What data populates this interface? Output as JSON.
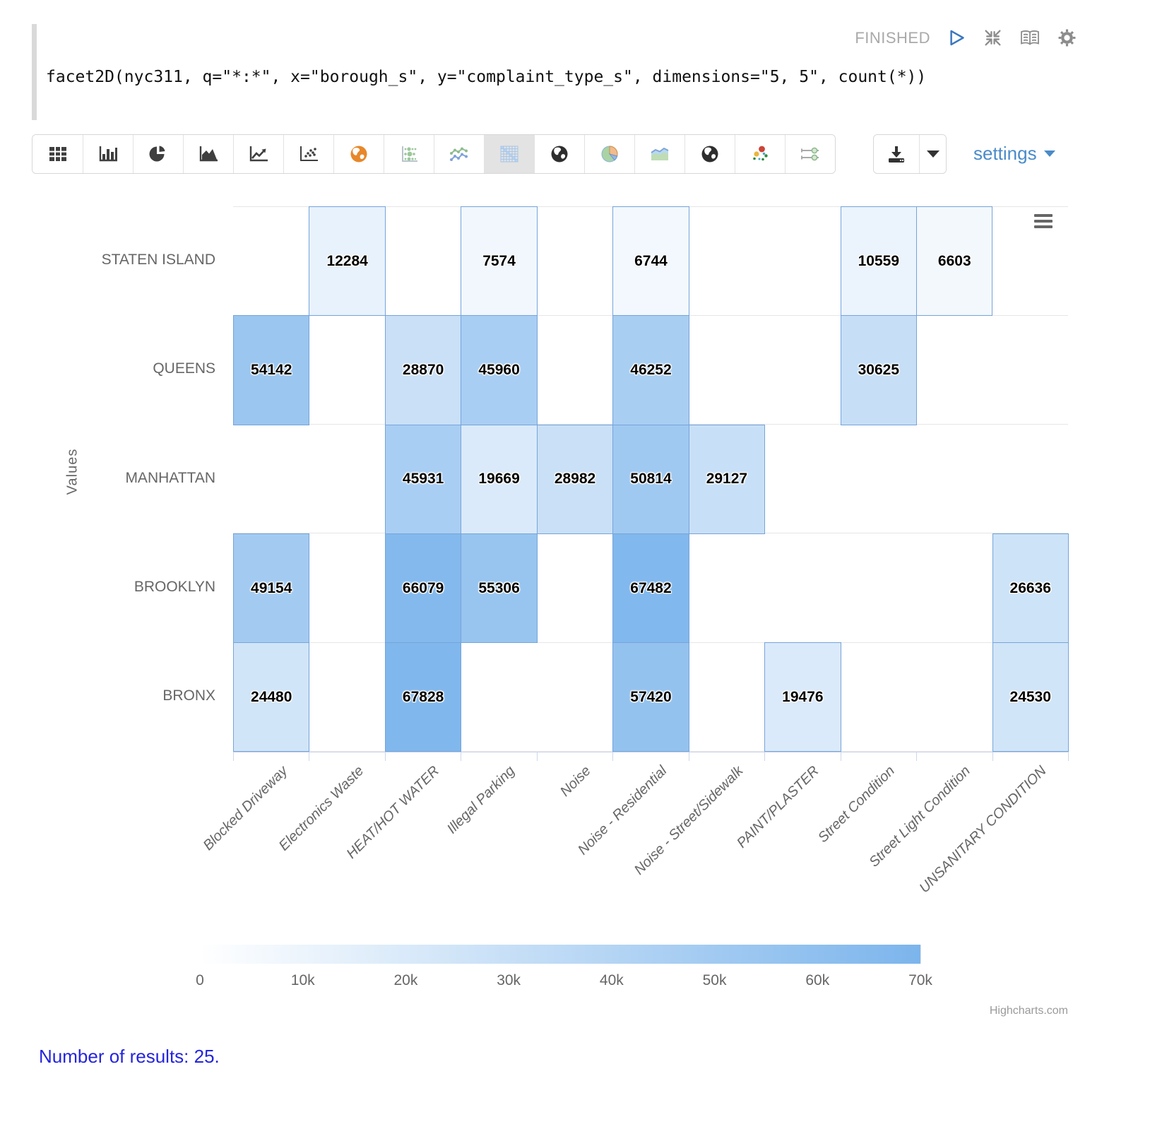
{
  "status": {
    "label": "FINISHED"
  },
  "code": "facet2D(nyc311, q=\"*:*\", x=\"borough_s\", y=\"complaint_type_s\", dimensions=\"5, 5\", count(*))",
  "toolbar": {
    "settings_label": "settings",
    "selected_icon": "heatmap-chart-icon",
    "icons": [
      "table-icon",
      "bar-chart-icon",
      "pie-chart-icon",
      "area-chart-icon",
      "line-chart-icon",
      "scatter-chart-icon",
      "globe-orange-icon",
      "bubble-matrix-icon",
      "multi-line-chart-icon",
      "heatmap-chart-icon",
      "globe-dark-icon",
      "pie-color-chart-icon",
      "area-color-chart-icon",
      "globe-dark2-icon",
      "scatter-color-chart-icon",
      "sliders-icon"
    ]
  },
  "chart_data": {
    "type": "heatmap",
    "x_categories": [
      "Blocked Driveway",
      "Electronics Waste",
      "HEAT/HOT WATER",
      "Illegal Parking",
      "Noise",
      "Noise - Residential",
      "Noise - Street/Sidewalk",
      "PAINT/PLASTER",
      "Street Condition",
      "Street Light Condition",
      "UNSANITARY CONDITION"
    ],
    "y_categories_top_to_bottom": [
      "STATEN ISLAND",
      "QUEENS",
      "MANHATTAN",
      "BROOKLYN",
      "BRONX"
    ],
    "ylabel": "Values",
    "series": [
      {
        "name": "STATEN ISLAND",
        "values": [
          null,
          12284,
          null,
          7574,
          null,
          6744,
          null,
          null,
          10559,
          6603,
          null
        ]
      },
      {
        "name": "QUEENS",
        "values": [
          54142,
          null,
          28870,
          45960,
          null,
          46252,
          null,
          null,
          30625,
          null,
          null
        ]
      },
      {
        "name": "MANHATTAN",
        "values": [
          null,
          null,
          45931,
          19669,
          28982,
          50814,
          29127,
          null,
          null,
          null,
          null
        ]
      },
      {
        "name": "BROOKLYN",
        "values": [
          49154,
          null,
          66079,
          55306,
          null,
          67482,
          null,
          null,
          null,
          null,
          26636
        ]
      },
      {
        "name": "BRONX",
        "values": [
          24480,
          null,
          67828,
          null,
          null,
          57420,
          null,
          19476,
          null,
          null,
          24530
        ]
      }
    ],
    "color_axis": {
      "min": 0,
      "max": 70000,
      "min_color": "#ffffff",
      "max_color": "#7cb5ec",
      "tick_labels": [
        "0",
        "10k",
        "20k",
        "30k",
        "40k",
        "50k",
        "60k",
        "70k"
      ],
      "tick_values": [
        0,
        10000,
        20000,
        30000,
        40000,
        50000,
        60000,
        70000
      ]
    },
    "legend_position": "bottom",
    "grid": "horizontal",
    "credit": "Highcharts.com"
  },
  "footer": {
    "results_text": "Number of results: 25."
  }
}
